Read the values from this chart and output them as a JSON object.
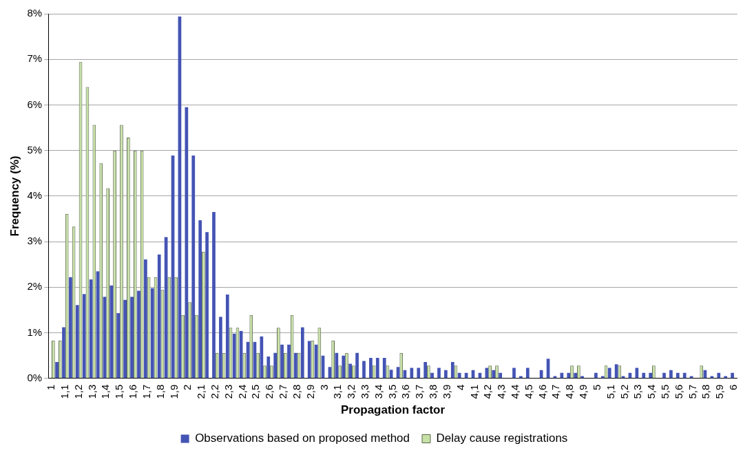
{
  "chart_data": {
    "type": "bar",
    "xlabel": "Propagation factor",
    "ylabel": "Frequency (%)",
    "categories": [
      "1",
      null,
      "1,1",
      null,
      "1,2",
      null,
      "1,3",
      null,
      "1,4",
      null,
      "1,5",
      null,
      "1,6",
      null,
      "1,7",
      null,
      "1,8",
      null,
      "1,9",
      null,
      "2",
      null,
      "2,1",
      null,
      "2,2",
      null,
      "2,3",
      null,
      "2,4",
      null,
      "2,5",
      null,
      "2,6",
      null,
      "2,7",
      null,
      "2,8",
      null,
      "2,9",
      null,
      "3",
      null,
      "3,1",
      null,
      "3,2",
      null,
      "3,3",
      null,
      "3,4",
      null,
      "3,5",
      null,
      "3,6",
      null,
      "3,7",
      null,
      "3,8",
      null,
      "3,9",
      null,
      "4",
      null,
      "4,1",
      null,
      "4,2",
      null,
      "4,3",
      null,
      "4,4",
      null,
      "4,5",
      null,
      "4,6",
      null,
      "4,7",
      null,
      "4,8",
      null,
      "4,9",
      null,
      "5",
      null,
      "5,1",
      null,
      "5,2",
      null,
      "5,3",
      null,
      "5,4",
      null,
      "5,5",
      null,
      "5,6",
      null,
      "5,7",
      null,
      "5,8",
      null,
      "5,9",
      null,
      "6"
    ],
    "series": [
      {
        "name": "Observations based on proposed method",
        "color": "#4454b4",
        "values": [
          0,
          0.36,
          1.12,
          2.22,
          1.61,
          1.85,
          2.17,
          2.35,
          1.79,
          2.04,
          1.43,
          1.72,
          1.79,
          1.92,
          2.61,
          1.98,
          2.72,
          3.1,
          4.89,
          7.94,
          5.95,
          4.89,
          3.47,
          3.21,
          3.65,
          1.35,
          1.84,
          0.98,
          1.04,
          0.8,
          0.8,
          0.92,
          0.48,
          0.56,
          0.74,
          0.74,
          0.56,
          1.12,
          0.82,
          0.74,
          0.5,
          0.25,
          0.56,
          0.5,
          0.32,
          0.56,
          0.38,
          0.45,
          0.45,
          0.45,
          0.19,
          0.25,
          0.18,
          0.23,
          0.23,
          0.36,
          0.12,
          0.23,
          0.18,
          0.36,
          0.12,
          0.12,
          0.18,
          0.12,
          0.23,
          0.18,
          0.12,
          0,
          0.23,
          0.05,
          0.23,
          0,
          0.18,
          0.43,
          0.05,
          0.12,
          0.12,
          0.12,
          0.05,
          0,
          0.12,
          0.05,
          0.23,
          0.31,
          0.05,
          0.12,
          0.23,
          0.12,
          0.12,
          0,
          0.12,
          0.18,
          0.12,
          0.12,
          0.05,
          0,
          0.18,
          0.05,
          0.12,
          0.05,
          0.12
        ]
      },
      {
        "name": "Delay cause registrations",
        "color": "#c6e0a6",
        "values": [
          0.83,
          0.83,
          3.61,
          3.33,
          6.94,
          6.39,
          5.56,
          4.72,
          4.17,
          5,
          5.56,
          5.28,
          5,
          5,
          2.22,
          2.22,
          1.94,
          2.22,
          2.22,
          1.39,
          1.67,
          1.39,
          2.78,
          0,
          0.56,
          0.56,
          1.11,
          1.11,
          0.56,
          1.39,
          0.56,
          0.28,
          0.28,
          1.11,
          0.56,
          1.39,
          0.56,
          0,
          0.83,
          1.11,
          0,
          0.83,
          0.28,
          0.56,
          0.28,
          0,
          0,
          0.28,
          0,
          0.28,
          0,
          0.56,
          0,
          0,
          0,
          0.28,
          0,
          0,
          0,
          0.28,
          0,
          0,
          0,
          0,
          0.28,
          0.28,
          0,
          0,
          0,
          0,
          0,
          0,
          0,
          0,
          0,
          0,
          0.28,
          0.28,
          0,
          0,
          0,
          0.28,
          0,
          0.28,
          0,
          0,
          0,
          0,
          0.28,
          0,
          0,
          0,
          0,
          0,
          0,
          0.28,
          0,
          0,
          0,
          0,
          0
        ]
      }
    ],
    "ylim": [
      0,
      8
    ],
    "yticks": [
      {
        "value": 0,
        "label": "0%"
      },
      {
        "value": 1,
        "label": "1%"
      },
      {
        "value": 2,
        "label": "2%"
      },
      {
        "value": 3,
        "label": "3%"
      },
      {
        "value": 4,
        "label": "4%"
      },
      {
        "value": 5,
        "label": "5%"
      },
      {
        "value": 6,
        "label": "6%"
      },
      {
        "value": 7,
        "label": "7%"
      },
      {
        "value": 8,
        "label": "8%"
      }
    ],
    "grid": "y",
    "legend": "bottom"
  }
}
